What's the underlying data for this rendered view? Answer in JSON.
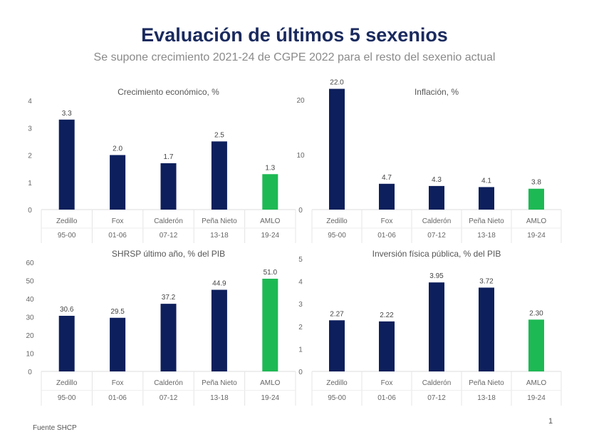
{
  "title": "Evaluación de últimos 5 sexenios",
  "subtitle": "Se supone crecimiento 2021-24 de CGPE 2022 para el resto del sexenio actual",
  "source": "Fuente SHCP",
  "page_number": "1",
  "colors": {
    "bar": "#0d1f5c",
    "highlight": "#1db954",
    "title": "#1a2a5e"
  },
  "chart_data": [
    {
      "type": "bar",
      "title": "Crecimiento económico, %",
      "categories": [
        "Zedillo",
        "Fox",
        "Calderón",
        "Peña Nieto",
        "AMLO"
      ],
      "periods": [
        "95-00",
        "01-06",
        "07-12",
        "13-18",
        "19-24"
      ],
      "values": [
        3.3,
        2.0,
        1.7,
        2.5,
        1.3
      ],
      "labels": [
        "3.3",
        "2.0",
        "1.7",
        "2.5",
        "1.3"
      ],
      "ylim": [
        0,
        4
      ],
      "yticks": [
        0,
        1,
        2,
        3,
        4
      ],
      "highlight": "AMLO"
    },
    {
      "type": "bar",
      "title": "Inflación, %",
      "categories": [
        "Zedillo",
        "Fox",
        "Calderón",
        "Peña Nieto",
        "AMLO"
      ],
      "periods": [
        "95-00",
        "01-06",
        "07-12",
        "13-18",
        "19-24"
      ],
      "values": [
        22.0,
        4.7,
        4.3,
        4.1,
        3.8
      ],
      "labels": [
        "22.0",
        "4.7",
        "4.3",
        "4.1",
        "3.8"
      ],
      "ylim": [
        0,
        24
      ],
      "yticks": [
        0,
        10,
        20
      ],
      "highlight": "AMLO"
    },
    {
      "type": "bar",
      "title": "SHRSP último año, % del PIB",
      "categories": [
        "Zedillo",
        "Fox",
        "Calderón",
        "Peña Nieto",
        "AMLO"
      ],
      "periods": [
        "95-00",
        "01-06",
        "07-12",
        "13-18",
        "19-24"
      ],
      "values": [
        30.6,
        29.5,
        37.2,
        44.9,
        51.0
      ],
      "labels": [
        "30.6",
        "29.5",
        "37.2",
        "44.9",
        "51.0"
      ],
      "ylim": [
        0,
        60
      ],
      "yticks": [
        0,
        10,
        20,
        30,
        40,
        50,
        60
      ],
      "highlight": "AMLO"
    },
    {
      "type": "bar",
      "title": "Inversión física pública, % del PIB",
      "categories": [
        "Zedillo",
        "Fox",
        "Calderón",
        "Peña Nieto",
        "AMLO"
      ],
      "periods": [
        "95-00",
        "01-06",
        "07-12",
        "13-18",
        "19-24"
      ],
      "values": [
        2.27,
        2.22,
        3.95,
        3.72,
        2.3
      ],
      "labels": [
        "2.27",
        "2.22",
        "3.95",
        "3.72",
        "2.30"
      ],
      "ylim": [
        0,
        5
      ],
      "yticks": [
        0,
        1,
        2,
        3,
        4,
        5
      ],
      "highlight": "AMLO"
    }
  ]
}
